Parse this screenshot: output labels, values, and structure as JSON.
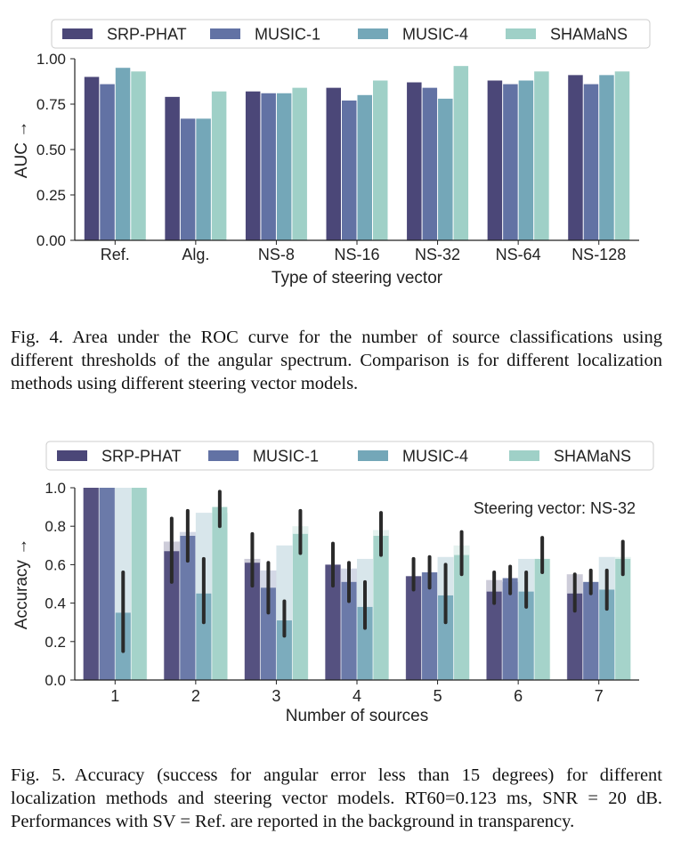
{
  "colors": {
    "series": [
      "#4b4778",
      "#6272a4",
      "#74a7b8",
      "#9fd0c7"
    ],
    "legend_border": "#cccccc",
    "axis": "#222222"
  },
  "chart_data": [
    {
      "type": "bar",
      "title": "",
      "xlabel": "Type of steering vector",
      "ylabel": "AUC →",
      "ylim": [
        0,
        1
      ],
      "yticks": [
        "0.00",
        "0.25",
        "0.50",
        "0.75",
        "1.00"
      ],
      "legend_position": "top",
      "categories": [
        "Ref.",
        "Alg.",
        "NS-8",
        "NS-16",
        "NS-32",
        "NS-64",
        "NS-128"
      ],
      "series": [
        {
          "name": "SRP-PHAT",
          "values": [
            0.9,
            0.79,
            0.82,
            0.84,
            0.87,
            0.88,
            0.91
          ]
        },
        {
          "name": "MUSIC-1",
          "values": [
            0.86,
            0.67,
            0.81,
            0.77,
            0.84,
            0.86,
            0.86
          ]
        },
        {
          "name": "MUSIC-4",
          "values": [
            0.95,
            0.67,
            0.81,
            0.8,
            0.78,
            0.88,
            0.91
          ]
        },
        {
          "name": "SHAMaNS",
          "values": [
            0.93,
            0.82,
            0.84,
            0.88,
            0.96,
            0.93,
            0.93
          ]
        }
      ]
    },
    {
      "type": "bar",
      "title": "",
      "xlabel": "Number of sources",
      "ylabel": "Accuracy →",
      "ylim": [
        0,
        1
      ],
      "yticks": [
        "0.0",
        "0.2",
        "0.4",
        "0.6",
        "0.8",
        "1.0"
      ],
      "legend_position": "top",
      "annotation": "Steering vector: NS-32",
      "categories": [
        "1",
        "2",
        "3",
        "4",
        "5",
        "6",
        "7"
      ],
      "series": [
        {
          "name": "SRP-PHAT",
          "values": [
            1.0,
            0.67,
            0.61,
            0.6,
            0.54,
            0.46,
            0.45
          ],
          "err_low": [
            1.0,
            0.51,
            0.49,
            0.49,
            0.47,
            0.4,
            0.36
          ],
          "err_high": [
            1.0,
            0.84,
            0.76,
            0.71,
            0.63,
            0.56,
            0.55
          ],
          "ref_values": [
            1.0,
            0.72,
            0.63,
            0.6,
            0.54,
            0.52,
            0.55
          ]
        },
        {
          "name": "MUSIC-1",
          "values": [
            1.0,
            0.75,
            0.48,
            0.51,
            0.56,
            0.53,
            0.51
          ],
          "err_low": [
            1.0,
            0.62,
            0.35,
            0.41,
            0.48,
            0.45,
            0.45
          ],
          "err_high": [
            1.0,
            0.88,
            0.61,
            0.61,
            0.64,
            0.59,
            0.57
          ],
          "ref_values": [
            1.0,
            0.77,
            0.57,
            0.58,
            0.56,
            0.51,
            0.51
          ]
        },
        {
          "name": "MUSIC-4",
          "values": [
            0.35,
            0.45,
            0.31,
            0.38,
            0.44,
            0.46,
            0.47
          ],
          "err_low": [
            0.15,
            0.3,
            0.23,
            0.27,
            0.3,
            0.38,
            0.37
          ],
          "err_high": [
            0.56,
            0.63,
            0.41,
            0.51,
            0.6,
            0.56,
            0.57
          ],
          "ref_values": [
            1.0,
            0.87,
            0.7,
            0.63,
            0.64,
            0.63,
            0.64
          ]
        },
        {
          "name": "SHAMaNS",
          "values": [
            1.0,
            0.9,
            0.76,
            0.75,
            0.65,
            0.63,
            0.63
          ],
          "err_low": [
            1.0,
            0.8,
            0.66,
            0.65,
            0.55,
            0.56,
            0.55
          ],
          "err_high": [
            1.0,
            0.98,
            0.88,
            0.87,
            0.77,
            0.74,
            0.72
          ],
          "ref_values": [
            1.0,
            0.87,
            0.8,
            0.78,
            0.7,
            0.63,
            0.64
          ]
        }
      ]
    }
  ],
  "captions": {
    "fig4": "Fig. 4. Area under the ROC curve for the number of source classifications using different thresholds of the angular spectrum. Comparison is for different localization methods using different steering vector models.",
    "fig5": "Fig. 5. Accuracy (success for angular error less than 15 degrees) for different localization methods and steering vector models. RT60=0.123 ms, SNR = 20 dB. Performances with SV = Ref. are reported in the background in transparency."
  }
}
